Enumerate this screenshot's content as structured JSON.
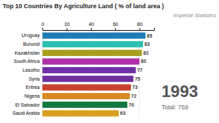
{
  "chart_data": {
    "type": "bar",
    "orientation": "horizontal",
    "title": "Top 10 Countries By Agriculture Land ( % of land area )",
    "annotations": [
      "Imperial Statistics",
      "1993",
      "Total: 759"
    ],
    "categories": [
      "Uruguay",
      "Burundi",
      "Kazakhstan",
      "South Africa",
      "Lesotho",
      "Syria",
      "Eritrea",
      "Nigeria",
      "El Salvador",
      "Saudi Arabia"
    ],
    "values": [
      85,
      83,
      82,
      80,
      77,
      75,
      73,
      72,
      70,
      63
    ],
    "colors": [
      "#1e7db5",
      "#2bbfb0",
      "#a8a020",
      "#b030a8",
      "#7030a8",
      "#7030a0",
      "#c84030",
      "#d88820",
      "#107840",
      "#d8a020"
    ],
    "xlim": [
      0,
      92
    ],
    "xticks": [
      0,
      20,
      40,
      60,
      80
    ],
    "grid": true,
    "data_labels": true
  }
}
